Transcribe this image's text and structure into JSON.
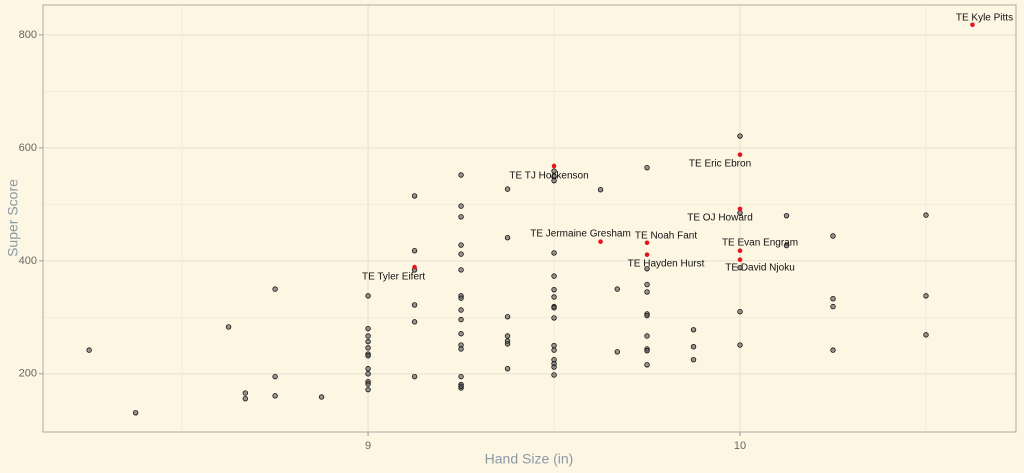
{
  "chart_data": {
    "type": "scatter",
    "x_label": "Hand Size (in)",
    "y_label": "Super Score",
    "xlim": [
      8.126,
      10.742
    ],
    "ylim": [
      97,
      853
    ],
    "xticks": [
      9,
      10
    ],
    "yticks": [
      200,
      400,
      600,
      800
    ],
    "x_minor_grid": [
      8.5,
      9.5,
      10.5
    ],
    "y_minor_grid": [
      300,
      500,
      700
    ],
    "grid": true,
    "series": [
      {
        "color": "#555555",
        "x": [
          8.25,
          8.375,
          8.625,
          8.67,
          8.67,
          8.75,
          8.75,
          8.75,
          8.875,
          9,
          9,
          9,
          9,
          9,
          9,
          9,
          9,
          9,
          9,
          9,
          9,
          9.125,
          9.125,
          9.125,
          9.125,
          9.125,
          9.125,
          9.25,
          9.25,
          9.25,
          9.25,
          9.25,
          9.25,
          9.25,
          9.25,
          9.25,
          9.25,
          9.25,
          9.25,
          9.25,
          9.25,
          9.25,
          9.25,
          9.25,
          9.375,
          9.375,
          9.375,
          9.375,
          9.375,
          9.375,
          9.375,
          9.5,
          9.5,
          9.5,
          9.5,
          9.5,
          9.5,
          9.5,
          9.5,
          9.5,
          9.5,
          9.5,
          9.5,
          9.5,
          9.5,
          9.5,
          9.5,
          9.625,
          9.67,
          9.67,
          9.75,
          9.75,
          9.75,
          9.75,
          9.75,
          9.75,
          9.75,
          9.75,
          9.75,
          9.75,
          9.875,
          9.875,
          9.875,
          10,
          10,
          10,
          10,
          10,
          10.125,
          10.125,
          10.25,
          10.25,
          10.25,
          10.25,
          10.5,
          10.5,
          10.5
        ],
        "values": [
          242,
          131,
          283,
          166,
          156,
          350,
          195,
          161,
          159,
          338,
          280,
          267,
          257,
          246,
          235,
          232,
          209,
          200,
          186,
          182,
          172,
          515,
          418,
          384,
          322,
          292,
          195,
          552,
          497,
          478,
          428,
          412,
          384,
          338,
          334,
          313,
          296,
          271,
          251,
          244,
          195,
          181,
          175,
          178,
          527,
          441,
          301,
          267,
          258,
          253,
          209,
          559,
          549,
          542,
          414,
          373,
          349,
          336,
          319,
          317,
          299,
          250,
          242,
          225,
          218,
          212,
          198,
          526,
          350,
          239,
          565,
          386,
          358,
          345,
          306,
          303,
          267,
          244,
          241,
          216,
          278,
          248,
          225,
          621,
          485,
          388,
          310,
          251,
          480,
          427,
          444,
          333,
          319,
          242,
          481,
          338,
          269
        ]
      },
      {
        "color": "#e8141c",
        "x": [
          10.625,
          9.5,
          10,
          10,
          9.625,
          9.75,
          10,
          9.75,
          10,
          9.125
        ],
        "values": [
          818,
          568,
          588,
          492,
          434,
          432,
          418,
          411,
          402,
          389
        ],
        "labels": [
          "TE Kyle Pitts",
          "TE TJ Hockenson",
          "TE Eric Ebron",
          "TE OJ Howard",
          "TE Jermaine Gresham",
          "TE Noah Fant",
          "TE Evan Engram",
          "TE Hayden Hurst",
          "TE David Njoku",
          "TE Tyler Eifert"
        ]
      }
    ]
  }
}
